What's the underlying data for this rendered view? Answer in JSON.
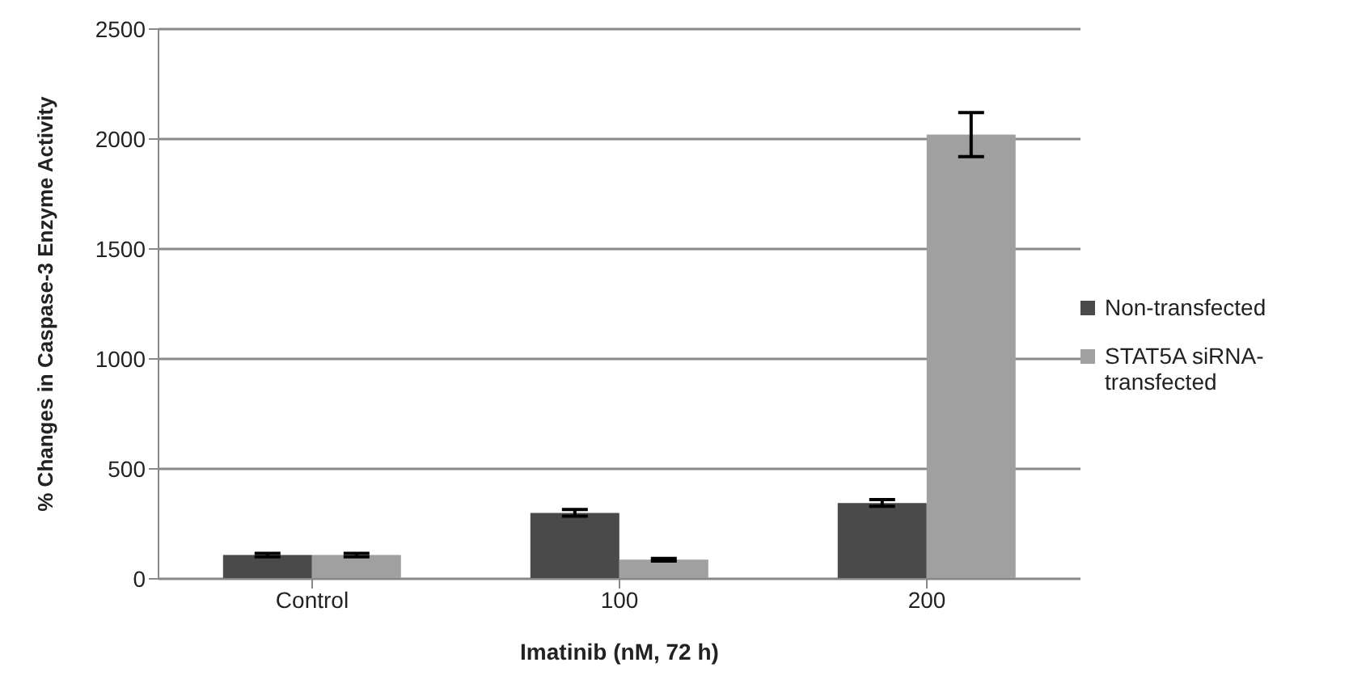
{
  "chart_data": {
    "type": "bar",
    "xlabel": "Imatinib (nM, 72 h)",
    "ylabel": "% Changes in Caspase-3 Enzyme Activity",
    "categories": [
      "Control",
      "100",
      "200"
    ],
    "series": [
      {
        "name": "Non-transfected",
        "color": "#4a4a4a",
        "values": [
          108,
          300,
          345
        ],
        "errors": [
          8,
          15,
          15
        ]
      },
      {
        "name": "STAT5A siRNA-transfected",
        "color": "#a0a0a0",
        "values": [
          108,
          87,
          2020
        ],
        "errors": [
          8,
          6,
          100
        ]
      }
    ],
    "ylim": [
      0,
      2500
    ],
    "yticks": [
      0,
      500,
      1000,
      1500,
      2000,
      2500
    ],
    "grid": "y",
    "legend": "right"
  }
}
